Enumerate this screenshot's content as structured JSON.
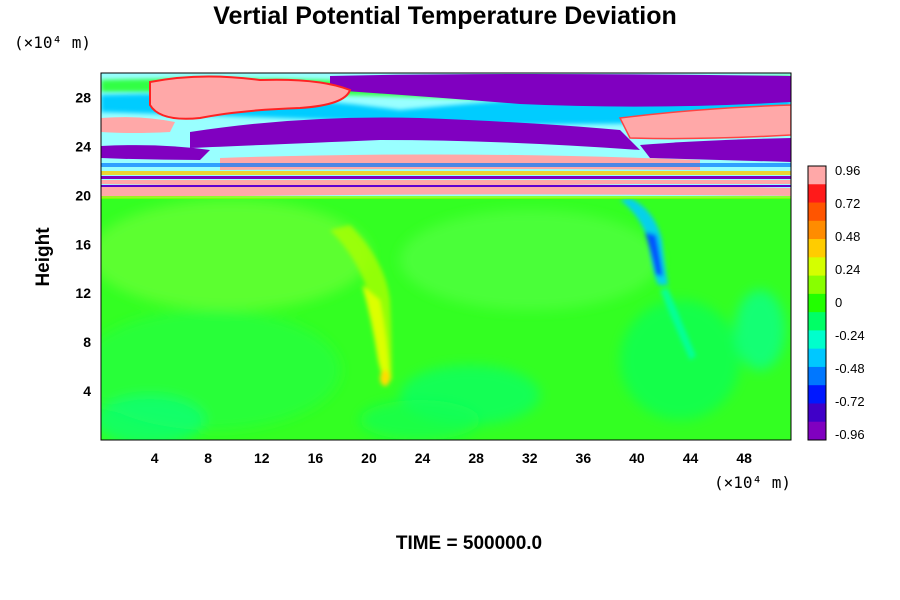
{
  "chart_data": {
    "type": "heatmap",
    "title": "Vertial Potential Temperature Deviation",
    "ylabel": "Height",
    "x_unit": "(×10⁴ m)",
    "y_unit": "(×10⁴ m)",
    "footer": "TIME = 500000.0",
    "xlim": [
      0,
      51.5
    ],
    "ylim": [
      0,
      30
    ],
    "x_ticks": [
      "4",
      "8",
      "12",
      "16",
      "20",
      "24",
      "28",
      "32",
      "36",
      "40",
      "44",
      "48"
    ],
    "y_ticks": [
      "4",
      "8",
      "12",
      "16",
      "20",
      "24",
      "28"
    ],
    "colorbar": {
      "range": [
        -0.96,
        0.96
      ],
      "tick_labels": [
        "0.96",
        "0.72",
        "0.48",
        "0.24",
        "0",
        "-0.24",
        "-0.48",
        "-0.72",
        "-0.96"
      ],
      "colors": [
        "#ffa8a8",
        "#ff1a1a",
        "#ff5500",
        "#ff8c00",
        "#ffcc00",
        "#d4ff00",
        "#88ff00",
        "#22ff00",
        "#00ff66",
        "#00ffcc",
        "#00c8ff",
        "#0077ff",
        "#0018ff",
        "#4000c8",
        "#8000c0"
      ]
    },
    "features": {
      "upper_layer_y": [
        20,
        30
      ],
      "positive_plume": {
        "x": 21,
        "y_top": 20,
        "y_bottom": 4,
        "value": 0.3
      },
      "negative_plume": {
        "x": 41,
        "y_top": 20,
        "y_bottom": 12,
        "value": -0.6
      },
      "background_value": 0
    }
  }
}
